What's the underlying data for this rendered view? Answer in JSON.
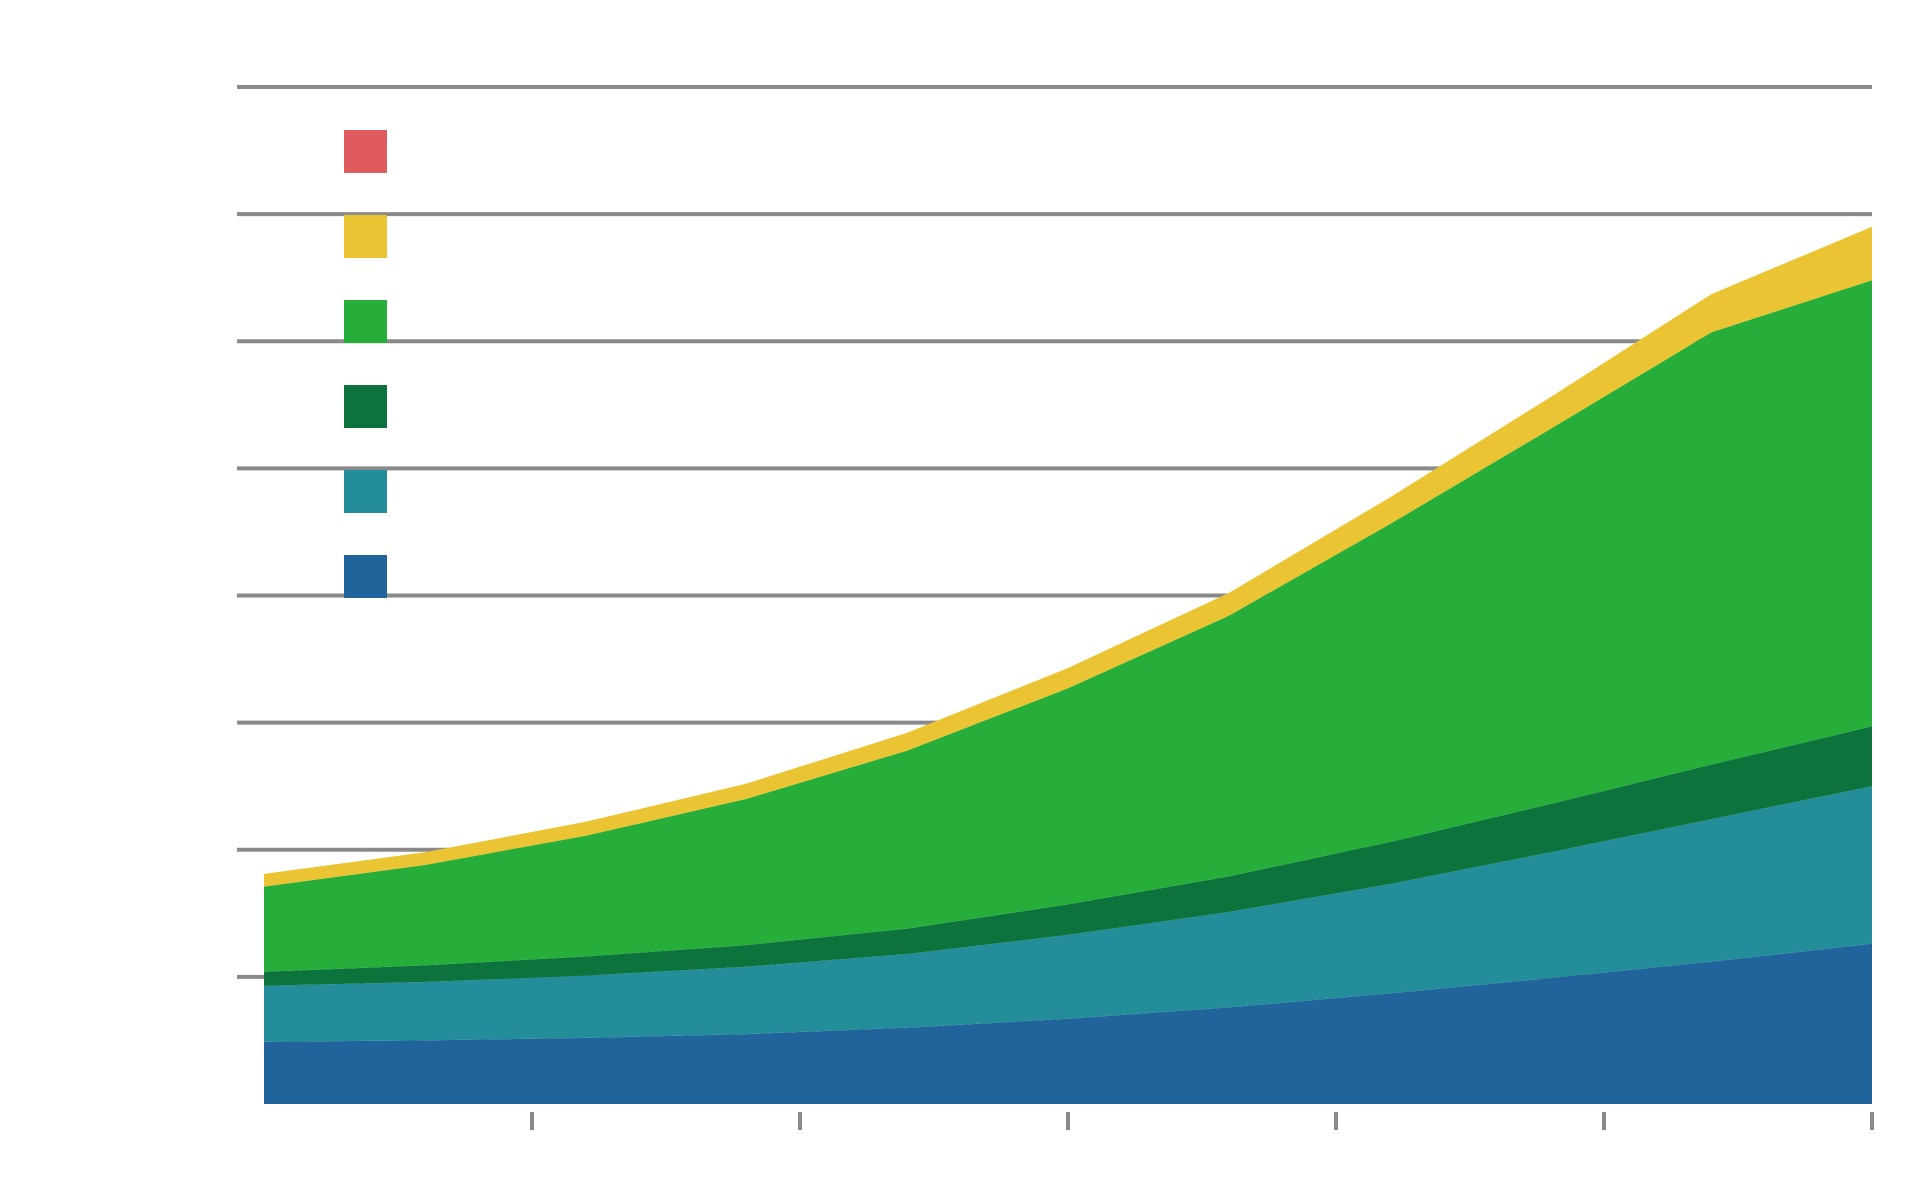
{
  "chart_data": {
    "type": "area",
    "stacked": true,
    "title": "",
    "xlabel": "",
    "ylabel": "",
    "x_tick_labels": [],
    "y_tick_labels": [],
    "x": [
      0,
      0.1,
      0.2,
      0.3,
      0.4,
      0.5,
      0.6,
      0.7,
      0.8,
      0.9,
      1.0
    ],
    "xlim": [
      0,
      1.0
    ],
    "ylim": [
      0,
      8
    ],
    "grid": "horizontal",
    "legend_placement": "top-left",
    "series": [
      {
        "color": "#20649b",
        "values": [
          0.49,
          0.5,
          0.52,
          0.55,
          0.6,
          0.67,
          0.76,
          0.87,
          0.99,
          1.12,
          1.26
        ]
      },
      {
        "color": "#238e9a",
        "values": [
          0.44,
          0.46,
          0.49,
          0.53,
          0.58,
          0.66,
          0.75,
          0.86,
          0.99,
          1.12,
          1.24
        ]
      },
      {
        "color": "#0d733d",
        "values": [
          0.11,
          0.13,
          0.15,
          0.17,
          0.2,
          0.24,
          0.28,
          0.33,
          0.38,
          0.43,
          0.47
        ]
      },
      {
        "color": "#27ad3a",
        "values": [
          0.67,
          0.79,
          0.95,
          1.15,
          1.4,
          1.7,
          2.05,
          2.5,
          2.95,
          3.4,
          3.51
        ]
      },
      {
        "color": "#ebc433",
        "values": [
          0.1,
          0.1,
          0.11,
          0.12,
          0.14,
          0.16,
          0.18,
          0.21,
          0.25,
          0.3,
          0.42
        ]
      },
      {
        "color": "#df5b5e",
        "values": [
          0,
          0,
          0,
          0,
          0,
          0,
          0,
          0,
          0,
          0,
          0
        ]
      }
    ]
  }
}
